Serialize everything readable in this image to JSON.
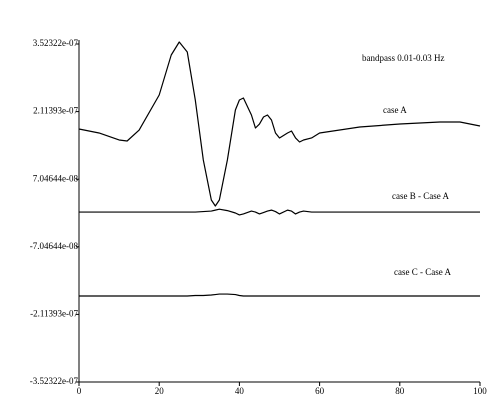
{
  "chart_data": {
    "type": "line",
    "title": "bandpass 0.01-0.03 Hz",
    "x": [
      0,
      5,
      10,
      12,
      15,
      20,
      23,
      25,
      27,
      29,
      31,
      33,
      34,
      35,
      37,
      39,
      40,
      41,
      43,
      44,
      45,
      46,
      47,
      48,
      49,
      50,
      52,
      53,
      54,
      55,
      56,
      58,
      60,
      70,
      80,
      90,
      95,
      100
    ],
    "series": [
      {
        "name": "case A",
        "color": "#000000",
        "values": [
          1.751e-07,
          1.668e-07,
          1.522e-07,
          1.501e-07,
          1.73e-07,
          2.46e-07,
          3.294e-07,
          3.565e-07,
          3.356e-07,
          2.356e-07,
          1.105e-07,
          2.71e-08,
          1.46e-08,
          2.71e-08,
          1.105e-07,
          2.147e-07,
          2.356e-07,
          2.397e-07,
          2.043e-07,
          1.772e-07,
          1.855e-07,
          2.001e-07,
          2.043e-07,
          1.939e-07,
          1.668e-07,
          1.564e-07,
          1.668e-07,
          1.709e-07,
          1.564e-07,
          1.48e-07,
          1.522e-07,
          1.564e-07,
          1.668e-07,
          1.793e-07,
          1.855e-07,
          1.897e-07,
          1.897e-07,
          1.814e-07
        ]
      },
      {
        "name": "case B - Case A",
        "color": "#000000",
        "values": [
          2e-09,
          2e-09,
          2e-09,
          2e-09,
          2e-09,
          2e-09,
          2e-09,
          2e-09,
          2e-09,
          2e-09,
          3e-09,
          4e-09,
          6e-09,
          8e-09,
          5e-09,
          0,
          -4e-09,
          -2e-09,
          4e-09,
          2e-09,
          -2e-09,
          1e-09,
          4e-09,
          6e-09,
          3e-09,
          -2e-09,
          6e-09,
          4e-09,
          -2e-09,
          2e-09,
          4e-09,
          2e-09,
          2e-09,
          2e-09,
          2e-09,
          2e-09,
          2e-09,
          2e-09
        ]
      },
      {
        "name": "case C - Case A",
        "color": "#000000",
        "values": [
          -1.731e-07,
          -1.731e-07,
          -1.731e-07,
          -1.731e-07,
          -1.731e-07,
          -1.731e-07,
          -1.731e-07,
          -1.731e-07,
          -1.731e-07,
          -1.72e-07,
          -1.72e-07,
          -1.71e-07,
          -1.7e-07,
          -1.69e-07,
          -1.69e-07,
          -1.7e-07,
          -1.72e-07,
          -1.731e-07,
          -1.731e-07,
          -1.731e-07,
          -1.731e-07,
          -1.731e-07,
          -1.731e-07,
          -1.731e-07,
          -1.731e-07,
          -1.731e-07,
          -1.731e-07,
          -1.731e-07,
          -1.731e-07,
          -1.731e-07,
          -1.731e-07,
          -1.731e-07,
          -1.731e-07,
          -1.731e-07,
          -1.731e-07,
          -1.731e-07,
          -1.731e-07,
          -1.731e-07
        ]
      }
    ],
    "xlim": [
      0,
      100
    ],
    "xticks": [
      0,
      20,
      40,
      60,
      80,
      100
    ],
    "ylim": [
      -3.52322e-07,
      3.52322e-07
    ],
    "yticks": [
      {
        "value": 3.52322e-07,
        "label": "3.52322e-07"
      },
      {
        "value": 2.11393e-07,
        "label": "2.11393e-07"
      },
      {
        "value": 7.04644e-08,
        "label": "7.04644e-08"
      },
      {
        "value": -7.04644e-08,
        "label": "-7.04644e-08"
      },
      {
        "value": -2.11393e-07,
        "label": "-2.11393e-07"
      },
      {
        "value": -3.52322e-07,
        "label": "-3.52322e-07"
      }
    ]
  }
}
